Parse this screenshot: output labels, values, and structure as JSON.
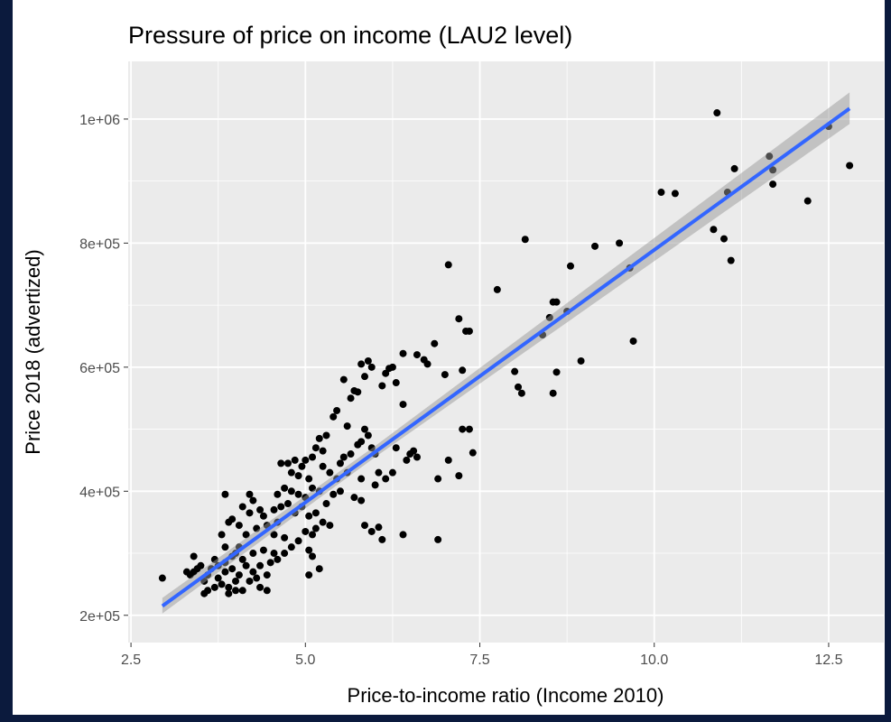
{
  "chart_data": {
    "type": "scatter",
    "title": "Pressure of price on income (LAU2 level)",
    "xlabel": "Price-to-income ratio (Income 2010)",
    "ylabel": "Price 2018 (advertized)",
    "color": "#000000",
    "xlim": [
      2.46,
      13.29
    ],
    "ylim": [
      156000,
      1093000
    ],
    "xticks": [
      2.5,
      {
        "value": 5,
        "label": "5.0"
      },
      7.5,
      {
        "value": 10,
        "label": "10.0"
      },
      12.5
    ],
    "yticks": [
      {
        "value": 200000,
        "label": "2e+05"
      },
      {
        "value": 400000,
        "label": "4e+05"
      },
      {
        "value": 600000,
        "label": "6e+05"
      },
      {
        "value": 800000,
        "label": "8e+05"
      },
      {
        "value": 1000000,
        "label": "1e+06"
      }
    ],
    "x_minor_ticks": [
      3.75,
      6.25,
      8.75,
      11.25
    ],
    "y_minor_ticks": [
      300000,
      500000,
      700000,
      900000
    ],
    "grid": true,
    "fit": {
      "x": [
        2.95,
        12.8
      ],
      "values": [
        215000,
        1017000
      ],
      "color": "#3366ff"
    },
    "band": {
      "x": [
        2.95,
        6.0,
        12.8
      ],
      "lower": [
        203000,
        455000,
        992000
      ],
      "upper": [
        228000,
        473000,
        1043000
      ],
      "color": "#999999"
    },
    "x": [
      10.9,
      12.5,
      12.8,
      11.65,
      11.7,
      11.7,
      11.15,
      11.05,
      10.1,
      10.3,
      12.2,
      10.85,
      11.0,
      11.1,
      9.5,
      9.15,
      9.65,
      9.7,
      8.95,
      8.8,
      8.75,
      8.55,
      8.6,
      8.5,
      8.4,
      8.55,
      8.6,
      8.15,
      7.75,
      8.0,
      8.05,
      8.1,
      7.05,
      7.2,
      7.3,
      7.35,
      7.25,
      7.0,
      7.25,
      7.35,
      7.4,
      7.05,
      7.2,
      6.9,
      6.9,
      6.85,
      6.75,
      6.7,
      6.6,
      6.4,
      6.2,
      6.15,
      6.25,
      6.1,
      6.3,
      6.4,
      6.5,
      6.45,
      6.55,
      6.6,
      6.3,
      6.25,
      6.15,
      6.05,
      6.4,
      6.1,
      6.05,
      5.95,
      5.85,
      5.8,
      5.9,
      5.95,
      5.85,
      5.7,
      5.75,
      5.55,
      5.65,
      5.45,
      5.4,
      5.6,
      5.85,
      5.9,
      5.8,
      5.75,
      5.95,
      6.0,
      5.65,
      5.55,
      5.5,
      5.3,
      5.2,
      5.15,
      5.25,
      5.1,
      5.0,
      4.95,
      4.85,
      4.75,
      4.65,
      4.8,
      4.9,
      5.05,
      5.25,
      5.35,
      5.45,
      5.6,
      5.8,
      6.0,
      5.7,
      5.8,
      5.5,
      5.4,
      5.2,
      5.1,
      5.0,
      4.9,
      4.8,
      4.7,
      4.6,
      4.75,
      4.65,
      4.55,
      4.85,
      5.05,
      5.15,
      5.25,
      5.35,
      5.0,
      5.1,
      4.9,
      4.8,
      4.7,
      4.6,
      4.5,
      5.05,
      5.1,
      5.2,
      5.05,
      4.55,
      4.45,
      4.4,
      4.35,
      4.25,
      4.2,
      4.1,
      4.2,
      4.3,
      4.15,
      4.05,
      3.95,
      3.85,
      3.9,
      3.8,
      3.85,
      4.0,
      4.1,
      4.25,
      4.35,
      4.45,
      4.35,
      4.45,
      4.2,
      4.05,
      3.95,
      3.85,
      3.75,
      3.7,
      3.65,
      3.6,
      3.55,
      3.5,
      3.45,
      3.4,
      3.35,
      3.3,
      3.4,
      3.6,
      3.55,
      3.7,
      3.8,
      3.9,
      4.0,
      4.1,
      3.9,
      4.3,
      4.25,
      2.95,
      3.85,
      3.75,
      4.0,
      4.15,
      3.95,
      4.05,
      4.55,
      4.7,
      4.6,
      4.95,
      5.15,
      5.3,
      4.4
    ],
    "values": [
      1010000,
      988000,
      925000,
      940000,
      918000,
      895000,
      920000,
      882000,
      882000,
      880000,
      868000,
      822000,
      807000,
      772000,
      800000,
      795000,
      760000,
      642000,
      610000,
      763000,
      690000,
      705000,
      705000,
      680000,
      652000,
      558000,
      592000,
      806000,
      725000,
      593000,
      568000,
      558000,
      765000,
      678000,
      658000,
      658000,
      595000,
      588000,
      500000,
      500000,
      462000,
      450000,
      425000,
      420000,
      322000,
      638000,
      605000,
      612000,
      620000,
      622000,
      598000,
      590000,
      600000,
      570000,
      575000,
      540000,
      460000,
      450000,
      465000,
      455000,
      470000,
      430000,
      420000,
      430000,
      330000,
      322000,
      342000,
      335000,
      345000,
      605000,
      610000,
      600000,
      585000,
      562000,
      560000,
      580000,
      550000,
      530000,
      520000,
      505000,
      500000,
      490000,
      480000,
      475000,
      470000,
      460000,
      460000,
      455000,
      445000,
      490000,
      485000,
      470000,
      465000,
      455000,
      450000,
      440000,
      450000,
      445000,
      445000,
      430000,
      425000,
      420000,
      440000,
      430000,
      420000,
      430000,
      420000,
      410000,
      390000,
      385000,
      400000,
      395000,
      400000,
      405000,
      390000,
      395000,
      400000,
      405000,
      395000,
      380000,
      375000,
      370000,
      365000,
      360000,
      365000,
      350000,
      345000,
      335000,
      330000,
      320000,
      310000,
      300000,
      290000,
      285000,
      305000,
      295000,
      275000,
      265000,
      330000,
      345000,
      360000,
      370000,
      385000,
      395000,
      375000,
      365000,
      340000,
      330000,
      345000,
      355000,
      395000,
      350000,
      330000,
      310000,
      300000,
      290000,
      300000,
      280000,
      265000,
      245000,
      240000,
      255000,
      265000,
      275000,
      270000,
      280000,
      290000,
      275000,
      265000,
      255000,
      280000,
      275000,
      270000,
      265000,
      270000,
      295000,
      240000,
      235000,
      245000,
      250000,
      245000,
      240000,
      240000,
      235000,
      260000,
      270000,
      260000,
      285000,
      260000,
      255000,
      280000,
      295000,
      310000,
      300000,
      325000,
      350000,
      375000,
      340000,
      380000,
      305000
    ]
  }
}
